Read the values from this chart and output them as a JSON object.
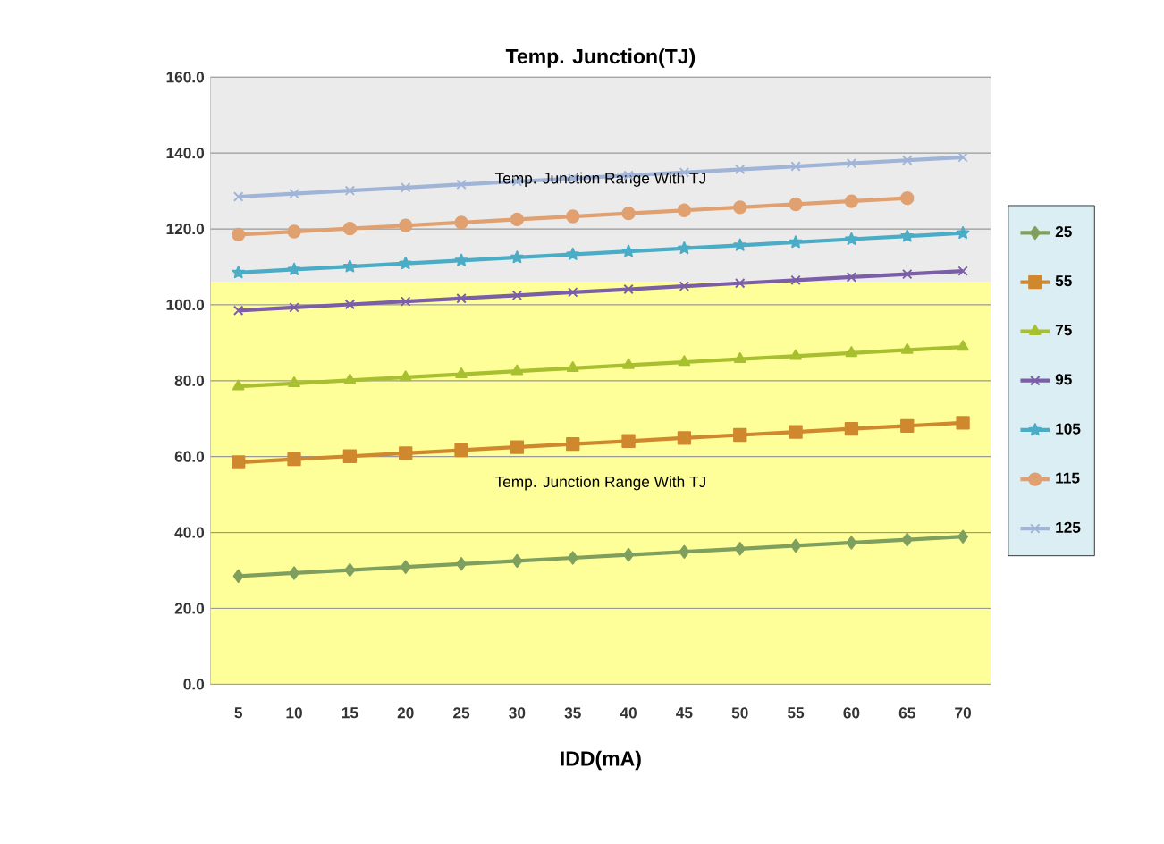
{
  "chart_data": {
    "type": "line",
    "title": "Temp. Junction(TJ)",
    "xlabel": "IDD(mA)",
    "categories": [
      "5",
      "10",
      "15",
      "20",
      "25",
      "30",
      "35",
      "40",
      "45",
      "50",
      "55",
      "60",
      "65",
      "70"
    ],
    "ylim": [
      0,
      160
    ],
    "yticks": [
      {
        "value": 0,
        "label": "0.0"
      },
      {
        "value": 20,
        "label": "20.0"
      },
      {
        "value": 40,
        "label": "40.0"
      },
      {
        "value": 60,
        "label": "60.0"
      },
      {
        "value": 80,
        "label": "80.0"
      },
      {
        "value": 100,
        "label": "100.0"
      },
      {
        "value": 120,
        "label": "120.0"
      },
      {
        "value": 140,
        "label": "140.0"
      },
      {
        "value": 160,
        "label": "160.0"
      }
    ],
    "grid": "y",
    "legend": "right",
    "line_style": "solid",
    "bands": [
      {
        "axis": "y",
        "from": 0,
        "to": 106,
        "label": "Temp. Junction Range With TJ",
        "color": "#ffff99"
      },
      {
        "axis": "y",
        "from": 106,
        "to": 160,
        "label": "Temp. Junction Range With TJ",
        "color": "#ebebeb"
      }
    ],
    "series": [
      {
        "name": "25",
        "color": "#7f9f5f",
        "marker": "diamond",
        "values": [
          28.5,
          29.3,
          30.1,
          30.9,
          31.7,
          32.5,
          33.3,
          34.1,
          34.9,
          35.7,
          36.5,
          37.3,
          38.1,
          38.9
        ]
      },
      {
        "name": "55",
        "color": "#d0882e",
        "marker": "square",
        "values": [
          58.5,
          59.3,
          60.1,
          60.9,
          61.7,
          62.5,
          63.3,
          64.1,
          64.9,
          65.7,
          66.5,
          67.3,
          68.1,
          68.9
        ]
      },
      {
        "name": "75",
        "color": "#a8c030",
        "marker": "triangle",
        "values": [
          78.5,
          79.3,
          80.1,
          80.9,
          81.7,
          82.5,
          83.3,
          84.1,
          84.9,
          85.7,
          86.5,
          87.3,
          88.1,
          88.9
        ]
      },
      {
        "name": "95",
        "color": "#7b5ea7",
        "marker": "cross",
        "values": [
          98.5,
          99.3,
          100.1,
          100.9,
          101.7,
          102.5,
          103.3,
          104.1,
          104.9,
          105.7,
          106.5,
          107.3,
          108.1,
          108.9
        ]
      },
      {
        "name": "105",
        "color": "#4bacc6",
        "marker": "star",
        "values": [
          108.5,
          109.3,
          110.1,
          110.9,
          111.7,
          112.5,
          113.3,
          114.1,
          114.9,
          115.7,
          116.5,
          117.3,
          118.1,
          118.9
        ]
      },
      {
        "name": "115",
        "color": "#e0a070",
        "marker": "circle",
        "values": [
          118.5,
          119.3,
          120.1,
          120.9,
          121.7,
          122.5,
          123.3,
          124.1,
          124.9,
          125.7,
          126.5,
          127.3,
          128.1,
          null
        ]
      },
      {
        "name": "125",
        "color": "#a0b4d8",
        "marker": "cross",
        "values": [
          128.5,
          129.3,
          130.1,
          130.9,
          131.7,
          132.5,
          133.3,
          134.1,
          134.9,
          135.7,
          136.5,
          137.3,
          138.1,
          138.9
        ]
      }
    ]
  }
}
